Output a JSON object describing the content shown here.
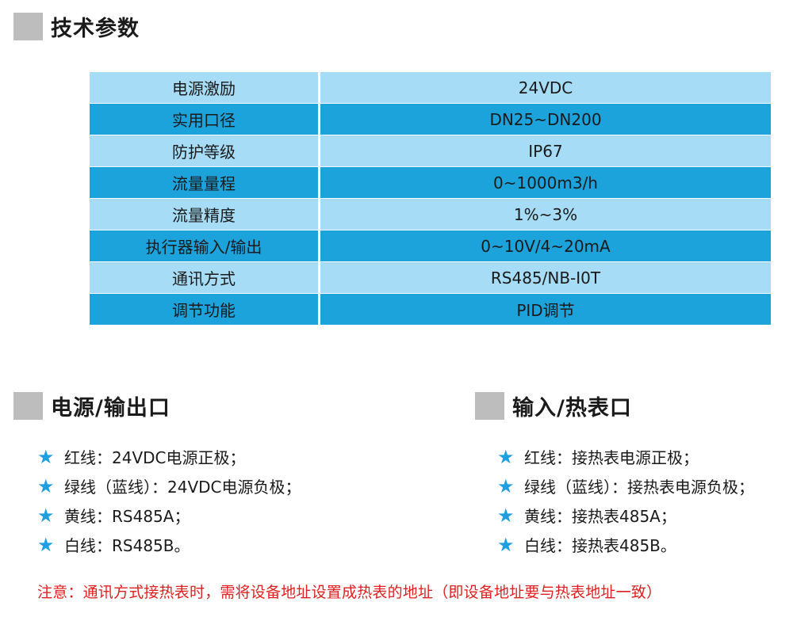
{
  "sections": {
    "tech_params": "技术参数",
    "power_output": "电源/输出口",
    "input_heat_meter": "输入/热表口"
  },
  "spec_table": [
    {
      "label": "电源激励",
      "value": "24VDC"
    },
    {
      "label": "实用口径",
      "value": "DN25~DN200"
    },
    {
      "label": "防护等级",
      "value": "IP67"
    },
    {
      "label": "流量量程",
      "value": "0~1000m3/h"
    },
    {
      "label": "流量精度",
      "value": "1%~3%"
    },
    {
      "label": "执行器输入/输出",
      "value": "0~10V/4~20mA"
    },
    {
      "label": "通讯方式",
      "value": "RS485/NB-I0T"
    },
    {
      "label": "调节功能",
      "value": "PID调节"
    }
  ],
  "power_output_list": [
    "红线：24VDC电源正极；",
    "绿线（蓝线）：24VDC电源负极；",
    "黄线：RS485A；",
    "白线：RS485B。"
  ],
  "input_heat_list": [
    "红线：接热表电源正极；",
    "绿线（蓝线）：接热表电源负极；",
    "黄线：接热表485A；",
    "白线：接热表485B。"
  ],
  "bullet_icon": "star-icon",
  "note": "注意：通讯方式接热表时，需将设备地址设置成热表的地址（即设备地址要与热表地址一致）",
  "colors": {
    "row_light": "#a6dcf5",
    "row_dark": "#1ca3dc",
    "star": "#1f9fe0",
    "note": "#e02020",
    "section_box": "#bdbdbd"
  }
}
